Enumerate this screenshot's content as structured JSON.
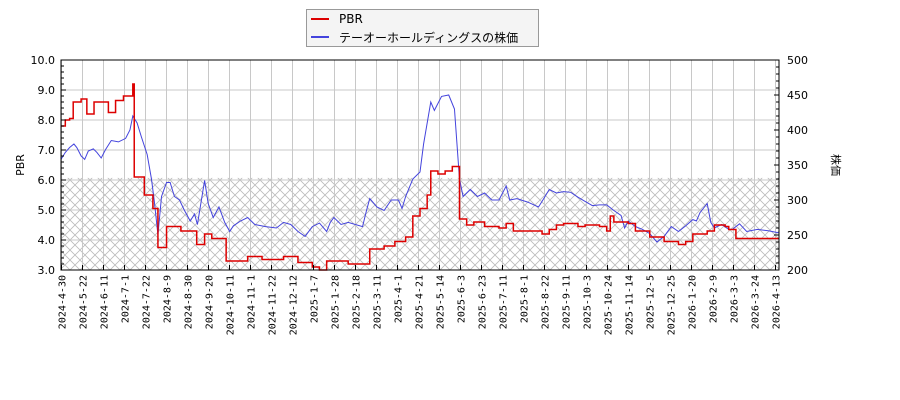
{
  "legend": {
    "items": [
      {
        "label": "PBR",
        "color": "#dd0000"
      },
      {
        "label": "テーオーホールディングスの株価",
        "color": "#4444dd"
      }
    ]
  },
  "axes": {
    "left_label": "PBR",
    "right_label": "株価",
    "left_ticks": [
      "10.0",
      "9.0",
      "8.0",
      "7.0",
      "6.0",
      "5.0",
      "4.0",
      "3.0"
    ],
    "right_ticks": [
      "500",
      "450",
      "400",
      "350",
      "300",
      "250",
      "200"
    ],
    "x_ticks": [
      "2024-4-30",
      "2024-5-22",
      "2024-6-11",
      "2024-7-1",
      "2024-7-22",
      "2024-8-9",
      "2024-8-30",
      "2024-9-20",
      "2024-10-11",
      "2024-11-1",
      "2024-11-22",
      "2024-12-12",
      "2025-1-7",
      "2025-1-28",
      "2025-2-18",
      "2025-3-11",
      "2025-4-1",
      "2025-4-21",
      "2025-5-14",
      "2025-6-3",
      "2025-6-23",
      "2025-7-11",
      "2025-8-1",
      "2025-8-22",
      "2025-9-11",
      "2025-10-3",
      "2025-10-24",
      "2025-11-14",
      "2025-12-5",
      "2025-12-25",
      "2026-1-20",
      "2026-2-9",
      "2026-3-3",
      "2026-3-24",
      "2026-4-13"
    ]
  },
  "chart_data": {
    "type": "line",
    "title": "",
    "xlabel": "",
    "ylabel": "PBR",
    "ylabel_right": "株価",
    "ylim": [
      3.0,
      10.0
    ],
    "ylim_right": [
      200,
      500
    ],
    "x_range": [
      "2024-4-30",
      "2026-4-13"
    ],
    "grid": true,
    "legend_position": "top-center",
    "hatched_band": {
      "axis": "left",
      "from": 3.0,
      "to": 6.07
    },
    "series": [
      {
        "name": "PBR",
        "axis": "left",
        "color": "#dd0000",
        "step": true,
        "points": [
          [
            0.0,
            7.8
          ],
          [
            0.006,
            8.0
          ],
          [
            0.012,
            8.05
          ],
          [
            0.017,
            8.6
          ],
          [
            0.028,
            8.7
          ],
          [
            0.036,
            8.2
          ],
          [
            0.046,
            8.6
          ],
          [
            0.066,
            8.25
          ],
          [
            0.076,
            8.65
          ],
          [
            0.087,
            8.8
          ],
          [
            0.1,
            9.2
          ],
          [
            0.102,
            6.1
          ],
          [
            0.116,
            5.5
          ],
          [
            0.128,
            5.05
          ],
          [
            0.135,
            3.75
          ],
          [
            0.147,
            4.45
          ],
          [
            0.167,
            4.3
          ],
          [
            0.189,
            3.85
          ],
          [
            0.2,
            4.2
          ],
          [
            0.21,
            4.05
          ],
          [
            0.23,
            3.3
          ],
          [
            0.26,
            3.45
          ],
          [
            0.28,
            3.35
          ],
          [
            0.31,
            3.45
          ],
          [
            0.33,
            3.25
          ],
          [
            0.35,
            3.1
          ],
          [
            0.36,
            3.0
          ],
          [
            0.37,
            3.3
          ],
          [
            0.4,
            3.2
          ],
          [
            0.415,
            3.2
          ],
          [
            0.43,
            3.7
          ],
          [
            0.45,
            3.8
          ],
          [
            0.465,
            3.95
          ],
          [
            0.48,
            4.1
          ],
          [
            0.49,
            4.8
          ],
          [
            0.5,
            5.05
          ],
          [
            0.51,
            5.5
          ],
          [
            0.515,
            6.3
          ],
          [
            0.525,
            6.2
          ],
          [
            0.535,
            6.3
          ],
          [
            0.545,
            6.45
          ],
          [
            0.555,
            4.7
          ],
          [
            0.565,
            4.5
          ],
          [
            0.575,
            4.6
          ],
          [
            0.59,
            4.45
          ],
          [
            0.61,
            4.4
          ],
          [
            0.62,
            4.55
          ],
          [
            0.63,
            4.3
          ],
          [
            0.65,
            4.3
          ],
          [
            0.67,
            4.2
          ],
          [
            0.68,
            4.35
          ],
          [
            0.69,
            4.5
          ],
          [
            0.7,
            4.55
          ],
          [
            0.72,
            4.45
          ],
          [
            0.73,
            4.5
          ],
          [
            0.75,
            4.45
          ],
          [
            0.76,
            4.3
          ],
          [
            0.765,
            4.8
          ],
          [
            0.77,
            4.6
          ],
          [
            0.79,
            4.55
          ],
          [
            0.8,
            4.3
          ],
          [
            0.82,
            4.1
          ],
          [
            0.83,
            4.1
          ],
          [
            0.84,
            3.95
          ],
          [
            0.86,
            3.85
          ],
          [
            0.87,
            3.95
          ],
          [
            0.88,
            4.2
          ],
          [
            0.9,
            4.3
          ],
          [
            0.91,
            4.5
          ],
          [
            0.925,
            4.45
          ],
          [
            0.93,
            4.35
          ],
          [
            0.94,
            4.05
          ],
          [
            1.0,
            4.05
          ]
        ]
      },
      {
        "name": "テーオーホールディングスの株価",
        "axis": "right",
        "color": "#4444dd",
        "step": false,
        "points": [
          [
            0.0,
            358
          ],
          [
            0.006,
            368
          ],
          [
            0.012,
            375
          ],
          [
            0.018,
            380
          ],
          [
            0.022,
            375
          ],
          [
            0.028,
            363
          ],
          [
            0.033,
            358
          ],
          [
            0.038,
            370
          ],
          [
            0.045,
            373
          ],
          [
            0.05,
            368
          ],
          [
            0.056,
            360
          ],
          [
            0.062,
            372
          ],
          [
            0.07,
            385
          ],
          [
            0.08,
            383
          ],
          [
            0.09,
            388
          ],
          [
            0.096,
            400
          ],
          [
            0.1,
            420
          ],
          [
            0.106,
            410
          ],
          [
            0.112,
            390
          ],
          [
            0.12,
            365
          ],
          [
            0.126,
            330
          ],
          [
            0.13,
            298
          ],
          [
            0.135,
            250
          ],
          [
            0.14,
            305
          ],
          [
            0.147,
            325
          ],
          [
            0.152,
            325
          ],
          [
            0.158,
            305
          ],
          [
            0.165,
            300
          ],
          [
            0.172,
            285
          ],
          [
            0.18,
            270
          ],
          [
            0.186,
            280
          ],
          [
            0.19,
            265
          ],
          [
            0.2,
            328
          ],
          [
            0.205,
            295
          ],
          [
            0.212,
            275
          ],
          [
            0.22,
            290
          ],
          [
            0.228,
            268
          ],
          [
            0.235,
            255
          ],
          [
            0.24,
            263
          ],
          [
            0.25,
            270
          ],
          [
            0.26,
            275
          ],
          [
            0.27,
            265
          ],
          [
            0.285,
            262
          ],
          [
            0.3,
            260
          ],
          [
            0.31,
            268
          ],
          [
            0.32,
            265
          ],
          [
            0.33,
            255
          ],
          [
            0.34,
            248
          ],
          [
            0.35,
            262
          ],
          [
            0.36,
            267
          ],
          [
            0.37,
            255
          ],
          [
            0.375,
            268
          ],
          [
            0.38,
            275
          ],
          [
            0.39,
            265
          ],
          [
            0.4,
            268
          ],
          [
            0.42,
            262
          ],
          [
            0.425,
            283
          ],
          [
            0.43,
            302
          ],
          [
            0.44,
            290
          ],
          [
            0.45,
            285
          ],
          [
            0.46,
            300
          ],
          [
            0.47,
            300
          ],
          [
            0.475,
            288
          ],
          [
            0.48,
            305
          ],
          [
            0.49,
            330
          ],
          [
            0.5,
            340
          ],
          [
            0.505,
            380
          ],
          [
            0.515,
            440
          ],
          [
            0.52,
            428
          ],
          [
            0.53,
            448
          ],
          [
            0.54,
            450
          ],
          [
            0.548,
            430
          ],
          [
            0.555,
            330
          ],
          [
            0.56,
            305
          ],
          [
            0.57,
            315
          ],
          [
            0.58,
            305
          ],
          [
            0.59,
            310
          ],
          [
            0.6,
            300
          ],
          [
            0.61,
            300
          ],
          [
            0.62,
            320
          ],
          [
            0.625,
            300
          ],
          [
            0.635,
            302
          ],
          [
            0.65,
            297
          ],
          [
            0.665,
            290
          ],
          [
            0.67,
            298
          ],
          [
            0.68,
            315
          ],
          [
            0.69,
            310
          ],
          [
            0.7,
            312
          ],
          [
            0.71,
            311
          ],
          [
            0.72,
            304
          ],
          [
            0.73,
            298
          ],
          [
            0.74,
            292
          ],
          [
            0.75,
            293
          ],
          [
            0.76,
            293
          ],
          [
            0.77,
            285
          ],
          [
            0.78,
            278
          ],
          [
            0.785,
            260
          ],
          [
            0.79,
            270
          ],
          [
            0.8,
            262
          ],
          [
            0.81,
            258
          ],
          [
            0.82,
            252
          ],
          [
            0.83,
            240
          ],
          [
            0.84,
            248
          ],
          [
            0.85,
            262
          ],
          [
            0.86,
            255
          ],
          [
            0.87,
            263
          ],
          [
            0.88,
            272
          ],
          [
            0.885,
            270
          ],
          [
            0.89,
            282
          ],
          [
            0.9,
            295
          ],
          [
            0.905,
            268
          ],
          [
            0.91,
            260
          ],
          [
            0.92,
            265
          ],
          [
            0.93,
            258
          ],
          [
            0.935,
            258
          ],
          [
            0.945,
            266
          ],
          [
            0.955,
            255
          ],
          [
            0.97,
            258
          ],
          [
            0.985,
            256
          ],
          [
            1.0,
            253
          ]
        ]
      }
    ]
  }
}
